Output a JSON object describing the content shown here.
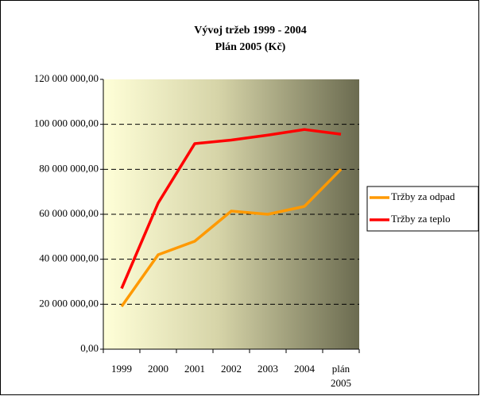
{
  "chart_data": {
    "type": "line",
    "title": "Vývoj tržeb 1999 - 2004",
    "subtitle": "Plán 2005 (Kč)",
    "categories": [
      "1999",
      "2000",
      "2001",
      "2002",
      "2003",
      "2004",
      "plán 2005"
    ],
    "series": [
      {
        "name": "Tržby za odpad",
        "color": "#ff9900",
        "values": [
          19000000,
          42000000,
          48000000,
          61400000,
          60000000,
          63500000,
          80000000
        ]
      },
      {
        "name": "Tržby za teplo",
        "color": "#ff0000",
        "values": [
          27000000,
          65000000,
          91400000,
          93000000,
          95200000,
          97700000,
          95600000
        ]
      }
    ],
    "ylim": [
      0,
      120000000
    ],
    "yticks": [
      {
        "value": 0,
        "label": "0,00"
      },
      {
        "value": 20000000,
        "label": "20 000 000,00"
      },
      {
        "value": 40000000,
        "label": "40 000 000,00"
      },
      {
        "value": 60000000,
        "label": "60 000 000,00"
      },
      {
        "value": 80000000,
        "label": "80 000 000,00"
      },
      {
        "value": 100000000,
        "label": "100 000 000,00"
      },
      {
        "value": 120000000,
        "label": "120 000 000,00"
      }
    ],
    "grid": true,
    "legend": "right"
  }
}
